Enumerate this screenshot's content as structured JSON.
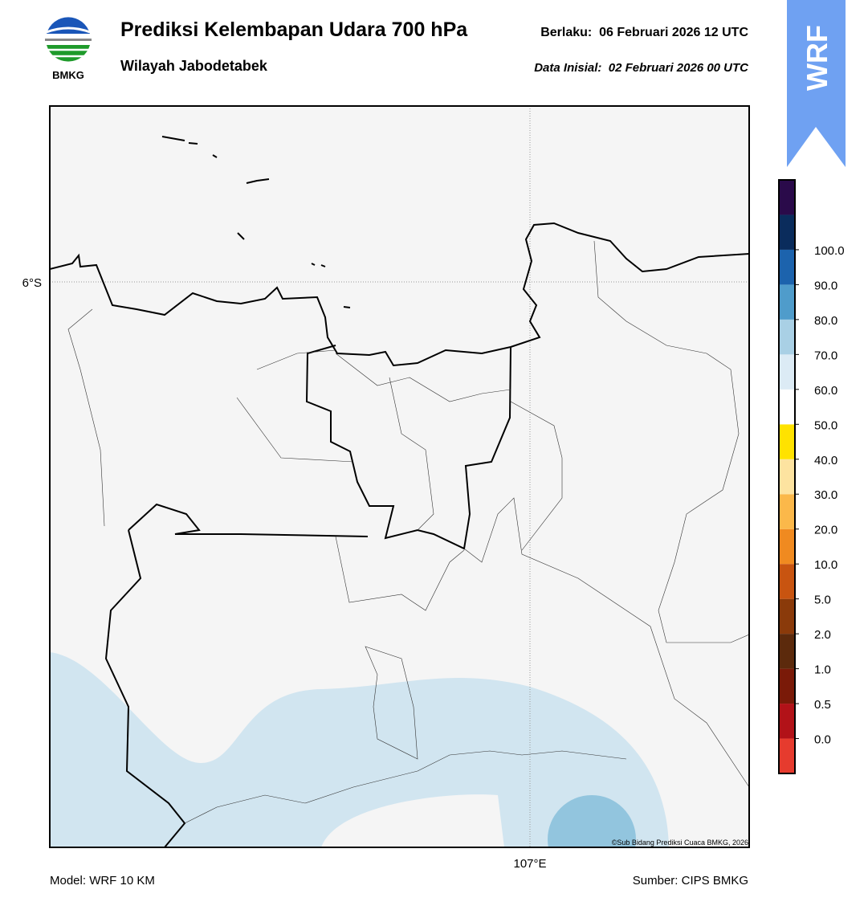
{
  "header": {
    "logo_text": "BMKG",
    "title": "Prediksi Kelembapan Udara 700 hPa",
    "subtitle": "Wilayah Jabodetabek",
    "valid": "Berlaku:  06 Februari 2026 12 UTC",
    "init": "Data Inisial:  02 Februari 2026 00 UTC",
    "badge": "WRF"
  },
  "map": {
    "lat_label": "6°S",
    "lon_label": "107°E",
    "credit": "©Sub Bidang Prediksi Cuaca BMKG, 2026"
  },
  "colorbar": {
    "colors": [
      "#e63b2e",
      "#b21218",
      "#7a1a08",
      "#5c2a0c",
      "#8a3a0a",
      "#c85410",
      "#f08a20",
      "#fbb84a",
      "#fde3a0",
      "#ffe200",
      "#ffffff",
      "#dcebf5",
      "#a9d0e5",
      "#4f9ccb",
      "#1c63ad",
      "#0a2c5c",
      "#2a0a4a"
    ],
    "labels": [
      "0.0",
      "0.5",
      "1.0",
      "2.0",
      "5.0",
      "10.0",
      "20.0",
      "30.0",
      "40.0",
      "50.0",
      "60.0",
      "70.0",
      "80.0",
      "90.0",
      "100.0"
    ]
  },
  "footer": {
    "model": "Model: WRF 10 KM",
    "source": "Sumber: CIPS BMKG"
  }
}
